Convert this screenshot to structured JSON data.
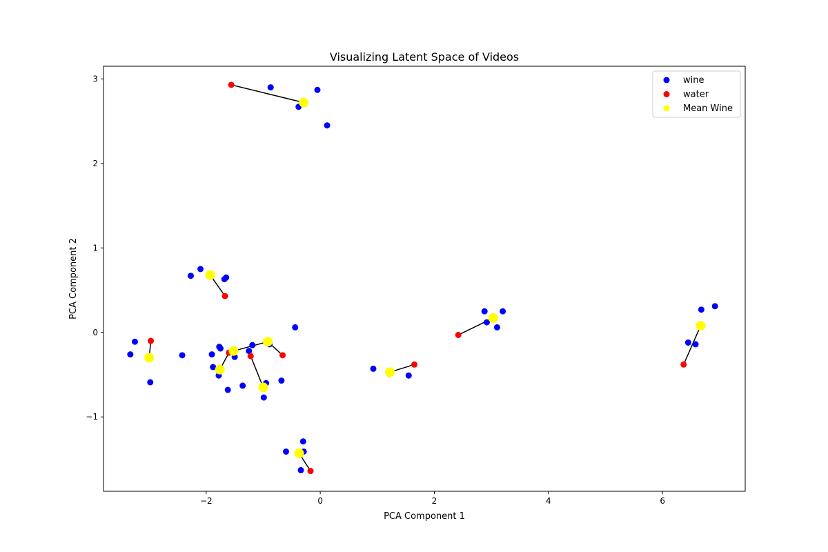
{
  "chart_data": {
    "type": "scatter",
    "title": "Visualizing Latent Space of Videos",
    "xlabel": "PCA Component 1",
    "ylabel": "PCA Component 2",
    "xlim": [
      -3.8,
      7.45
    ],
    "ylim": [
      -1.88,
      3.15
    ],
    "xticks": [
      -2,
      0,
      2,
      4,
      6
    ],
    "yticks": [
      -1,
      0,
      1,
      2,
      3
    ],
    "grid": false,
    "legend_position": "top-right",
    "series": [
      {
        "name": "wine",
        "color": "#0000ff",
        "points": [
          [
            -0.87,
            2.9
          ],
          [
            -0.05,
            2.87
          ],
          [
            -0.38,
            2.67
          ],
          [
            0.12,
            2.45
          ],
          [
            -2.27,
            0.67
          ],
          [
            -2.1,
            0.75
          ],
          [
            -1.68,
            0.63
          ],
          [
            -1.65,
            0.65
          ],
          [
            -3.25,
            -0.11
          ],
          [
            -3.33,
            -0.26
          ],
          [
            -2.98,
            -0.59
          ],
          [
            -2.42,
            -0.27
          ],
          [
            -1.9,
            -0.26
          ],
          [
            -1.77,
            -0.17
          ],
          [
            -1.75,
            -0.19
          ],
          [
            -1.88,
            -0.41
          ],
          [
            -1.78,
            -0.51
          ],
          [
            -1.62,
            -0.68
          ],
          [
            -1.5,
            -0.29
          ],
          [
            -1.36,
            -0.63
          ],
          [
            -1.25,
            -0.22
          ],
          [
            -1.19,
            -0.15
          ],
          [
            -0.95,
            -0.6
          ],
          [
            -0.99,
            -0.77
          ],
          [
            -0.89,
            -0.14
          ],
          [
            -0.68,
            -0.57
          ],
          [
            -0.44,
            0.06
          ],
          [
            0.93,
            -0.43
          ],
          [
            1.21,
            -0.49
          ],
          [
            1.55,
            -0.51
          ],
          [
            2.88,
            0.25
          ],
          [
            2.92,
            0.12
          ],
          [
            3.1,
            0.06
          ],
          [
            3.2,
            0.25
          ],
          [
            6.45,
            -0.12
          ],
          [
            6.58,
            -0.14
          ],
          [
            6.68,
            0.27
          ],
          [
            6.92,
            0.31
          ],
          [
            -0.3,
            -1.29
          ],
          [
            -0.29,
            -1.41
          ],
          [
            -0.6,
            -1.41
          ],
          [
            -0.34,
            -1.63
          ]
        ]
      },
      {
        "name": "water",
        "color": "#ff0000",
        "points": [
          [
            -1.56,
            2.93
          ],
          [
            -1.67,
            0.43
          ],
          [
            -2.97,
            -0.1
          ],
          [
            -1.6,
            -0.24
          ],
          [
            -1.22,
            -0.28
          ],
          [
            -0.66,
            -0.27
          ],
          [
            2.42,
            -0.03
          ],
          [
            1.65,
            -0.38
          ],
          [
            6.37,
            -0.38
          ],
          [
            -0.17,
            -1.64
          ]
        ]
      },
      {
        "name": "Mean Wine",
        "color": "#ffff00",
        "points": [
          [
            -0.29,
            2.72
          ],
          [
            -1.93,
            0.68
          ],
          [
            -3.0,
            -0.3
          ],
          [
            -1.76,
            -0.44
          ],
          [
            -1.52,
            -0.22
          ],
          [
            -0.92,
            -0.11
          ],
          [
            -1.0,
            -0.65
          ],
          [
            1.22,
            -0.47
          ],
          [
            3.03,
            0.17
          ],
          [
            6.67,
            0.08
          ],
          [
            -0.37,
            -1.43
          ]
        ]
      }
    ],
    "connectors": [
      [
        [
          -1.56,
          2.93
        ],
        [
          -0.29,
          2.72
        ]
      ],
      [
        [
          -1.67,
          0.43
        ],
        [
          -1.93,
          0.68
        ]
      ],
      [
        [
          -2.97,
          -0.1
        ],
        [
          -3.0,
          -0.3
        ]
      ],
      [
        [
          -1.6,
          -0.24
        ],
        [
          -1.76,
          -0.44
        ]
      ],
      [
        [
          -1.6,
          -0.24
        ],
        [
          -1.52,
          -0.22
        ]
      ],
      [
        [
          -1.52,
          -0.22
        ],
        [
          -0.92,
          -0.11
        ]
      ],
      [
        [
          -1.22,
          -0.28
        ],
        [
          -1.0,
          -0.65
        ]
      ],
      [
        [
          -0.66,
          -0.27
        ],
        [
          -0.92,
          -0.11
        ]
      ],
      [
        [
          2.42,
          -0.03
        ],
        [
          3.03,
          0.17
        ]
      ],
      [
        [
          1.65,
          -0.38
        ],
        [
          1.22,
          -0.47
        ]
      ],
      [
        [
          6.37,
          -0.38
        ],
        [
          6.67,
          0.08
        ]
      ],
      [
        [
          -0.17,
          -1.64
        ],
        [
          -0.37,
          -1.43
        ]
      ]
    ],
    "connector_color": "#000000"
  }
}
